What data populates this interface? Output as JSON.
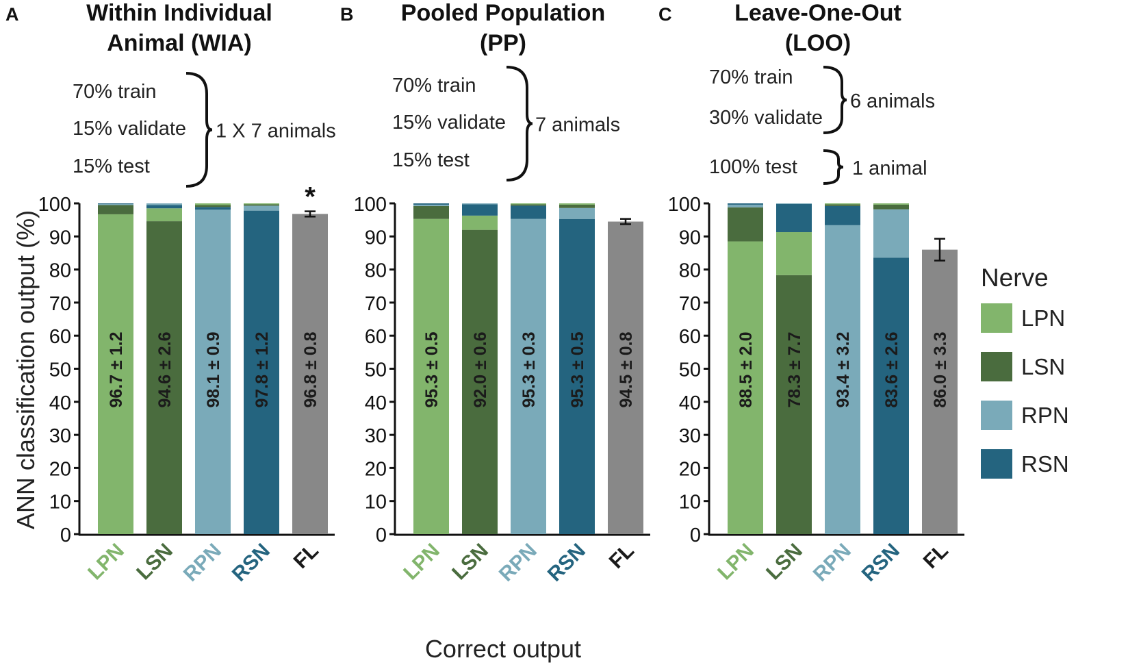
{
  "figure": {
    "ylabel": "ANN classification output (%)",
    "xlabel": "Correct output",
    "legend": {
      "title": "Nerve",
      "items": [
        {
          "label": "LPN",
          "color": "#82b56c"
        },
        {
          "label": "LSN",
          "color": "#4a6c3e"
        },
        {
          "label": "RPN",
          "color": "#7aaab9"
        },
        {
          "label": "RSN",
          "color": "#24647f"
        }
      ]
    },
    "fl_color": "#888888",
    "category_label_colors": [
      "#82b56c",
      "#4a6c3e",
      "#7aaab9",
      "#24647f",
      "#1a1a1a"
    ]
  },
  "chart_data": [
    {
      "type": "bar",
      "panel": "A",
      "title": [
        "Within Individual",
        "Animal (WIA)"
      ],
      "protocol": {
        "lines": [
          "70% train",
          "15% validate",
          "15% test"
        ],
        "bracket_labels": [
          "1 X 7 animals"
        ]
      },
      "categories": [
        "LPN",
        "LSN",
        "RPN",
        "RSN",
        "FL"
      ],
      "ylim": [
        0,
        100
      ],
      "yticks": [
        0,
        10,
        20,
        30,
        40,
        50,
        60,
        70,
        80,
        90,
        100
      ],
      "stacks": [
        [
          {
            "nerve": "LPN",
            "value": 96.7
          },
          {
            "nerve": "LSN",
            "value": 2.8
          },
          {
            "nerve": "RPN",
            "value": 0.3
          },
          {
            "nerve": "RSN",
            "value": 0.2
          }
        ],
        [
          {
            "nerve": "LSN",
            "value": 94.6
          },
          {
            "nerve": "LPN",
            "value": 3.9
          },
          {
            "nerve": "RSN",
            "value": 1.0
          },
          {
            "nerve": "RPN",
            "value": 0.5
          }
        ],
        [
          {
            "nerve": "RPN",
            "value": 98.1
          },
          {
            "nerve": "RSN",
            "value": 0.8
          },
          {
            "nerve": "LSN",
            "value": 0.6
          },
          {
            "nerve": "LPN",
            "value": 0.5
          }
        ],
        [
          {
            "nerve": "RSN",
            "value": 97.8
          },
          {
            "nerve": "RPN",
            "value": 1.5
          },
          {
            "nerve": "LSN",
            "value": 0.4
          },
          {
            "nerve": "LPN",
            "value": 0.3
          }
        ]
      ],
      "fl": {
        "value": 96.8,
        "error": 0.8,
        "significant": "*"
      },
      "labels": [
        "96.7 ± 1.2",
        "94.6 ± 2.6",
        "98.1 ± 0.9",
        "97.8 ± 1.2",
        "96.8 ± 0.8"
      ]
    },
    {
      "type": "bar",
      "panel": "B",
      "title": [
        "Pooled Population",
        "(PP)"
      ],
      "protocol": {
        "lines": [
          "70% train",
          "15% validate",
          "15% test"
        ],
        "bracket_labels": [
          "7 animals"
        ]
      },
      "categories": [
        "LPN",
        "LSN",
        "RPN",
        "RSN",
        "FL"
      ],
      "ylim": [
        0,
        100
      ],
      "yticks": [
        0,
        10,
        20,
        30,
        40,
        50,
        60,
        70,
        80,
        90,
        100
      ],
      "stacks": [
        [
          {
            "nerve": "LPN",
            "value": 95.3
          },
          {
            "nerve": "LSN",
            "value": 3.9
          },
          {
            "nerve": "RPN",
            "value": 0.4
          },
          {
            "nerve": "RSN",
            "value": 0.4
          }
        ],
        [
          {
            "nerve": "LSN",
            "value": 92.0
          },
          {
            "nerve": "LPN",
            "value": 4.3
          },
          {
            "nerve": "RSN",
            "value": 3.4
          },
          {
            "nerve": "RPN",
            "value": 0.3
          }
        ],
        [
          {
            "nerve": "RPN",
            "value": 95.3
          },
          {
            "nerve": "RSN",
            "value": 4.0
          },
          {
            "nerve": "LSN",
            "value": 0.4
          },
          {
            "nerve": "LPN",
            "value": 0.3
          }
        ],
        [
          {
            "nerve": "RSN",
            "value": 95.3
          },
          {
            "nerve": "RPN",
            "value": 3.3
          },
          {
            "nerve": "LSN",
            "value": 1.0
          },
          {
            "nerve": "LPN",
            "value": 0.4
          }
        ]
      ],
      "fl": {
        "value": 94.5,
        "error": 0.8,
        "significant": ""
      },
      "labels": [
        "95.3 ± 0.5",
        "92.0 ± 0.6",
        "95.3 ± 0.3",
        "95.3 ± 0.5",
        "94.5 ± 0.8"
      ]
    },
    {
      "type": "bar",
      "panel": "C",
      "title": [
        "Leave-One-Out",
        "(LOO)"
      ],
      "protocol": {
        "lines": [
          "70% train",
          "30% validate",
          "100% test"
        ],
        "bracket_labels": [
          "6 animals",
          "1 animal"
        ]
      },
      "categories": [
        "LPN",
        "LSN",
        "RPN",
        "RSN",
        "FL"
      ],
      "ylim": [
        0,
        100
      ],
      "yticks": [
        0,
        10,
        20,
        30,
        40,
        50,
        60,
        70,
        80,
        90,
        100
      ],
      "stacks": [
        [
          {
            "nerve": "LPN",
            "value": 88.5
          },
          {
            "nerve": "LSN",
            "value": 10.3
          },
          {
            "nerve": "RPN",
            "value": 0.8
          },
          {
            "nerve": "RSN",
            "value": 0.4
          }
        ],
        [
          {
            "nerve": "LSN",
            "value": 78.3
          },
          {
            "nerve": "LPN",
            "value": 13.0
          },
          {
            "nerve": "RSN",
            "value": 8.5
          },
          {
            "nerve": "RPN",
            "value": 0.2
          }
        ],
        [
          {
            "nerve": "RPN",
            "value": 93.4
          },
          {
            "nerve": "RSN",
            "value": 5.8
          },
          {
            "nerve": "LSN",
            "value": 0.5
          },
          {
            "nerve": "LPN",
            "value": 0.3
          }
        ],
        [
          {
            "nerve": "RSN",
            "value": 83.6
          },
          {
            "nerve": "RPN",
            "value": 14.6
          },
          {
            "nerve": "LSN",
            "value": 1.4
          },
          {
            "nerve": "LPN",
            "value": 0.4
          }
        ]
      ],
      "fl": {
        "value": 86.0,
        "error": 3.3,
        "significant": ""
      },
      "labels": [
        "88.5 ± 2.0",
        "78.3 ± 7.7",
        "93.4 ± 3.2",
        "83.6 ± 2.6",
        "86.0 ± 3.3"
      ]
    }
  ]
}
